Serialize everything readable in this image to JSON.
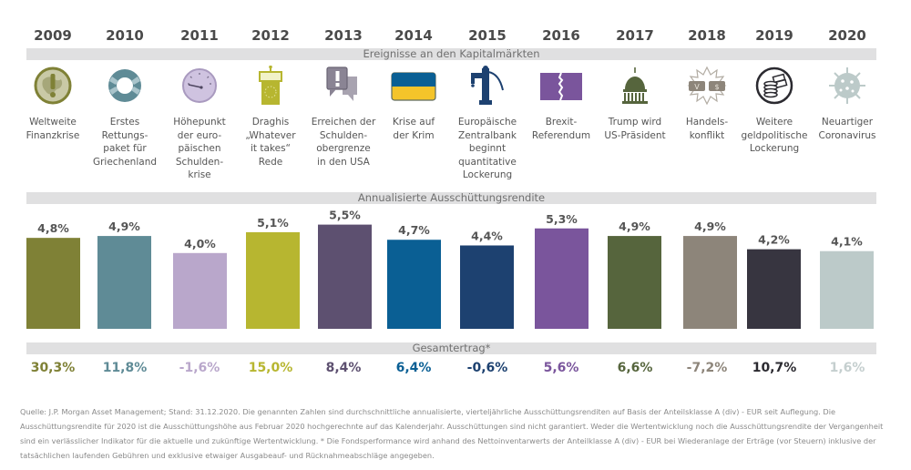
{
  "chart_data": {
    "type": "bar",
    "title": "Annualisierte Ausschüttungsrendite",
    "categories": [
      "2009",
      "2010",
      "2011",
      "2012",
      "2013",
      "2014",
      "2015",
      "2016",
      "2017",
      "2018",
      "2019",
      "2020"
    ],
    "values": [
      4.8,
      4.9,
      4.0,
      5.1,
      5.5,
      4.7,
      4.4,
      5.3,
      4.9,
      4.9,
      4.2,
      4.1
    ],
    "value_labels": [
      "4,8%",
      "4,9%",
      "4,0%",
      "5,1%",
      "5,5%",
      "4,7%",
      "4,4%",
      "5,3%",
      "4,9%",
      "4,9%",
      "4,2%",
      "4,1%"
    ],
    "bar_colors": [
      "#7f8136",
      "#5f8b96",
      "#b9a7cb",
      "#b7b630",
      "#5d5070",
      "#0a5f94",
      "#1d4170",
      "#7a559c",
      "#56653d",
      "#8d857a",
      "#373540",
      "#bccac9"
    ],
    "ylim": [
      0,
      6
    ],
    "xlabel": "",
    "ylabel": "",
    "grid": false,
    "unit": "%"
  },
  "years": [
    "2009",
    "2010",
    "2011",
    "2012",
    "2013",
    "2014",
    "2015",
    "2016",
    "2017",
    "2018",
    "2019",
    "2020"
  ],
  "sections": {
    "events_title": "Ereignisse an den Kapitalmärkten",
    "yield_title": "Annualisierte Ausschüttungsrendite",
    "total_title": "Gesamtertrag*"
  },
  "events": [
    {
      "icon": "warning-globe-icon",
      "color": "#7f8136",
      "lines": [
        "Weltweite",
        "Finanzkrise"
      ]
    },
    {
      "icon": "lifebuoy-icon",
      "color": "#5f8b96",
      "lines": [
        "Erstes",
        "Rettungs-",
        "paket für",
        "Griechenland"
      ]
    },
    {
      "icon": "gauge-icon",
      "color": "#b9a7cb",
      "lines": [
        "Höhepunkt",
        "der euro-",
        "päischen",
        "Schulden-",
        "krise"
      ]
    },
    {
      "icon": "podium-icon",
      "color": "#b7b630",
      "lines": [
        "Draghis",
        "„Whatever",
        "it takes“",
        "Rede"
      ]
    },
    {
      "icon": "speech-bubbles-icon",
      "color": "#8a8494",
      "lines": [
        "Erreichen der",
        "Schulden-",
        "obergrenze",
        "in den USA"
      ]
    },
    {
      "icon": "ukraine-flag-icon",
      "color": "#0a5f94",
      "lines": [
        "Krise auf",
        "der Krim"
      ]
    },
    {
      "icon": "water-pump-icon",
      "color": "#1d4170",
      "lines": [
        "Europäische",
        "Zentralbank",
        "beginnt",
        "quantitative",
        "Lockerung"
      ]
    },
    {
      "icon": "split-flag-icon",
      "color": "#7a559c",
      "lines": [
        "Brexit-",
        "Referendum"
      ]
    },
    {
      "icon": "capitol-icon",
      "color": "#56653d",
      "lines": [
        "Trump wird",
        "US-Präsident"
      ]
    },
    {
      "icon": "trade-conflict-icon",
      "color": "#8d857a",
      "lines": [
        "Handels-",
        "konflikt"
      ]
    },
    {
      "icon": "money-stack-icon",
      "color": "#373540",
      "lines": [
        "Weitere",
        "geldpolitische",
        "Lockerung"
      ]
    },
    {
      "icon": "coronavirus-icon",
      "color": "#bccac9",
      "lines": [
        "Neuartiger",
        "Coronavirus"
      ]
    }
  ],
  "totals": [
    {
      "label": "30,3%",
      "color": "#7f8136"
    },
    {
      "label": "11,8%",
      "color": "#5f8b96"
    },
    {
      "label": "-1,6%",
      "color": "#b9a7cb"
    },
    {
      "label": "15,0%",
      "color": "#b7b630"
    },
    {
      "label": "8,4%",
      "color": "#5d5070"
    },
    {
      "label": "6,4%",
      "color": "#0a5f94"
    },
    {
      "label": "-0,6%",
      "color": "#1d4170"
    },
    {
      "label": "5,6%",
      "color": "#7a559c"
    },
    {
      "label": "6,6%",
      "color": "#56653d"
    },
    {
      "label": "-7,2%",
      "color": "#8d857a"
    },
    {
      "label": "10,7%",
      "color": "#2b2a30"
    },
    {
      "label": "1,6%",
      "color": "#c5cfcf"
    }
  ],
  "footnote": "Quelle: J.P. Morgan Asset Management; Stand: 31.12.2020. Die genannten Zahlen sind durchschnittliche annualisierte, vierteljährliche Ausschüttungsrenditen auf Basis der Anteilsklasse A (div) - EUR seit Auflegung. Die Ausschüttungsrendite für 2020 ist die Ausschüttungshöhe aus Februar 2020 hochgerechnte auf das Kalenderjahr. Ausschüttungen sind nicht garantiert. Weder die Wertentwicklung noch die Ausschüttungsrendite der Vergangenheit sind ein verlässlicher Indikator für die aktuelle und zukünftige Wertentwicklung. * Die Fondsperformance wird anhand des Nettoinventarwerts der Anteilklasse A (div) - EUR bei Wiederanlage der Erträge (vor Steuern) inklusive der tatsächlichen laufenden Gebühren und exklusive etwaiger Ausgabeauf- und Rücknahmeabschläge angegeben."
}
